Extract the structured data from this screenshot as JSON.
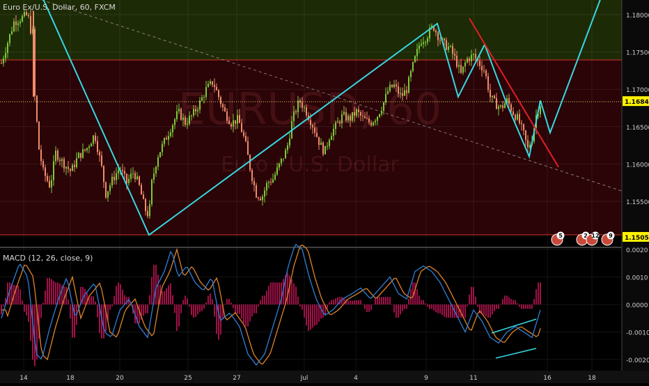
{
  "header": {
    "symbol_title": "Euro Ex/U.S. Dollar, 60, FXCM",
    "watermark_main": "EURUSD, 60",
    "watermark_sub": "Euro / U.S. Dollar"
  },
  "macd": {
    "title": "MACD (12, 26, close, 9)",
    "y_ticks": [
      "0.0020",
      "0.0010",
      "0.0000",
      "-0.0010",
      "-0.0020"
    ]
  },
  "price_axis": {
    "ticks": [
      "1.18000",
      "1.17500",
      "1.17000",
      "1.16500",
      "1.16000",
      "1.15500"
    ],
    "current_price": "1.16842",
    "low_label": "1.15059"
  },
  "event_badges": [
    "5",
    "2",
    "12",
    "9"
  ],
  "x_labels": [
    "14",
    "18",
    "20",
    "25",
    "27",
    "Jul",
    "4",
    "9",
    "11",
    "16",
    "18"
  ],
  "colors": {
    "up_candle": "#7ccb3c",
    "down_candle": "#f08c6c",
    "zone_upper": "#1d2a06",
    "zone_lower": "#2a0407",
    "cyan": "#37d9e3",
    "red_line": "#e31d26",
    "macd_line": "#2f7fd6",
    "signal_line": "#e0842a",
    "histogram": "#a01147",
    "price_tag": "#fff200"
  },
  "chart_data": {
    "type": "line",
    "title": "Euro Ex/U.S. Dollar, 60, FXCM",
    "x_label_sequence": [
      "14",
      "18",
      "20",
      "25",
      "27",
      "Jul",
      "4",
      "9",
      "11",
      "16",
      "18"
    ],
    "ylim": [
      1.151,
      1.1815
    ],
    "price_levels": {
      "current": 1.16842,
      "low": 1.15059,
      "zone_top_boundary": 1.1737
    },
    "cyan_pattern": {
      "x": [
        "14",
        "20",
        "9",
        "11",
        "16",
        "18"
      ],
      "approx_points": [
        {
          "x": "14 (late)",
          "y": 1.1825
        },
        {
          "x": "20/25",
          "y": 1.1505
        },
        {
          "x": "9",
          "y": 1.1788
        },
        {
          "x": "9/11",
          "y": 1.169
        },
        {
          "x": "11",
          "y": 1.176
        },
        {
          "x": "11/16",
          "y": 1.168
        },
        {
          "x": "16 (early)",
          "y": 1.161
        },
        {
          "x": "16",
          "y": 1.1685
        },
        {
          "x": "16/18",
          "y": 1.1642
        },
        {
          "x": "18",
          "y": 1.1835
        }
      ]
    },
    "red_trendline": [
      {
        "x": "11",
        "y": 1.1795
      },
      {
        "x": "16",
        "y": 1.1596
      }
    ],
    "macd_ylim": [
      -0.0025,
      0.0022
    ]
  }
}
